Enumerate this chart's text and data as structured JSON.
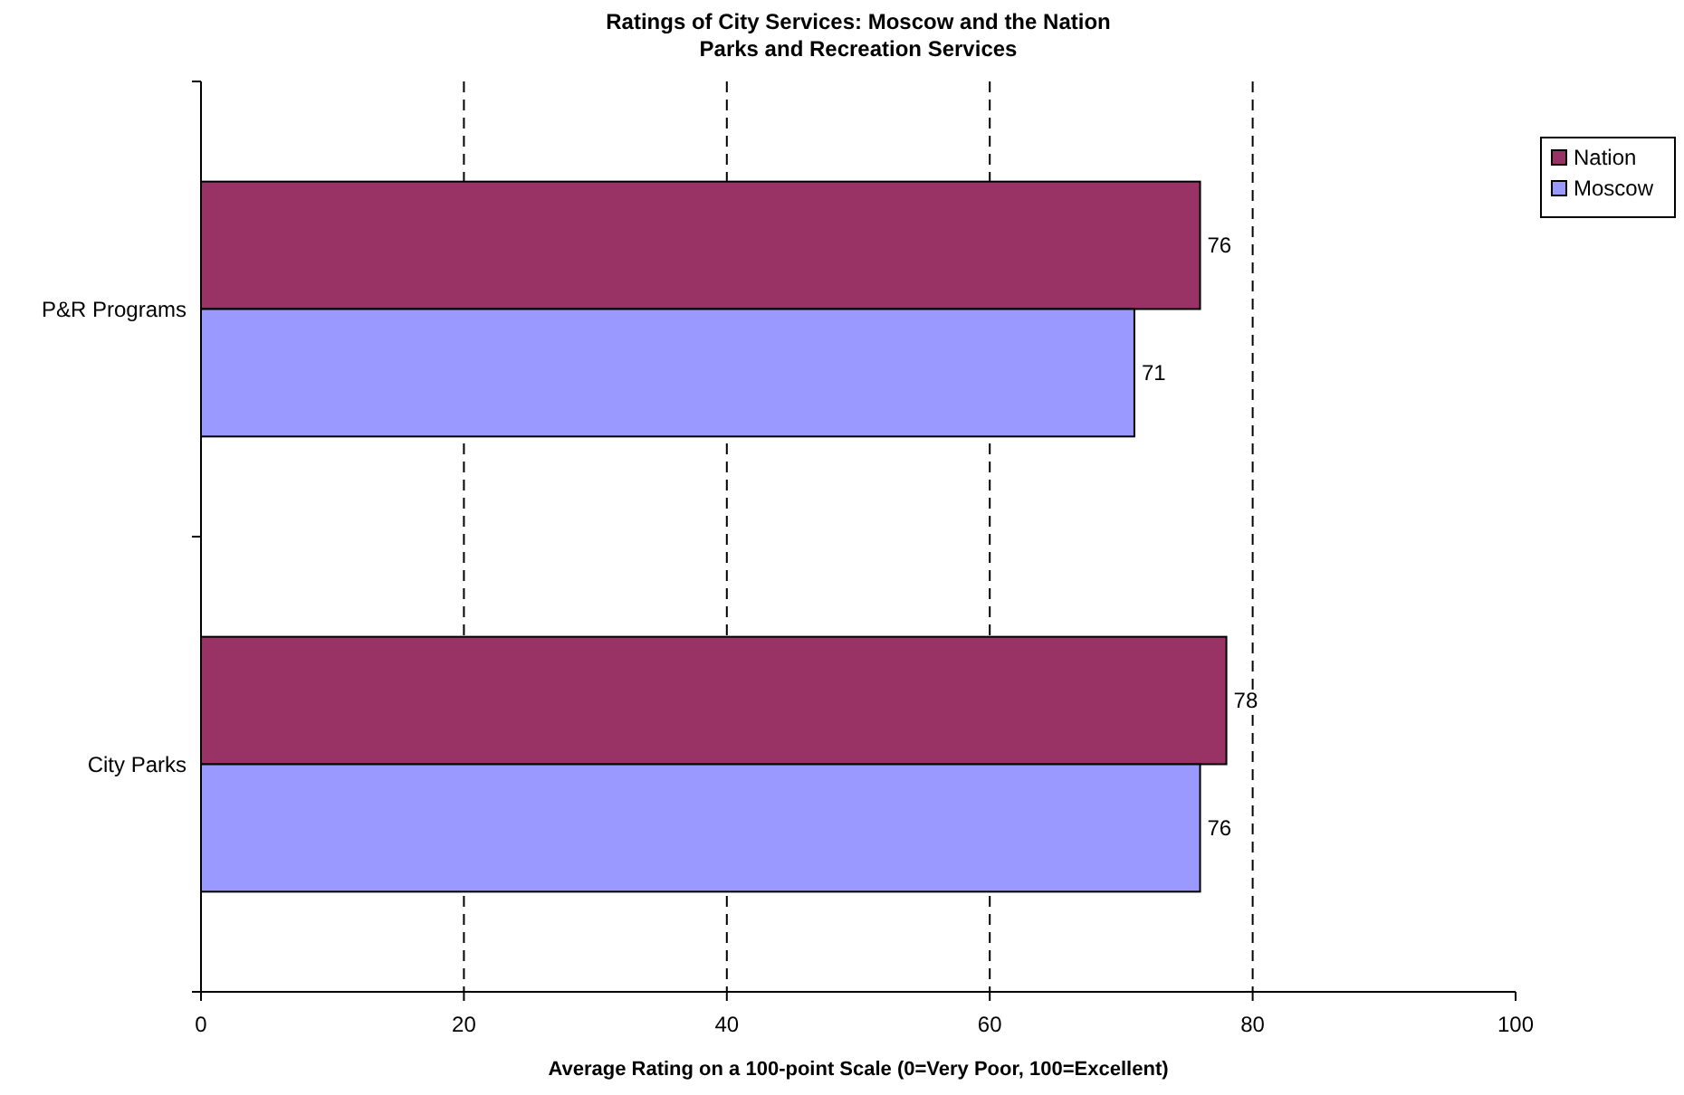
{
  "chart_data": {
    "type": "bar",
    "orientation": "horizontal",
    "title": "Ratings of City Services:  Moscow and the Nation",
    "subtitle": "Parks and Recreation Services",
    "xlabel": "Average Rating on a 100-point Scale (0=Very Poor, 100=Excellent)",
    "categories": [
      "P&R Programs",
      "City Parks"
    ],
    "series": [
      {
        "name": "Nation",
        "color": "#993366",
        "values": [
          76,
          78
        ]
      },
      {
        "name": "Moscow",
        "color": "#9999ff",
        "values": [
          71,
          76
        ]
      }
    ],
    "xlim": [
      0,
      100
    ],
    "xticks": [
      0,
      20,
      40,
      60,
      80,
      100
    ],
    "grid": "x",
    "legend": "top right",
    "data_labels": true
  }
}
